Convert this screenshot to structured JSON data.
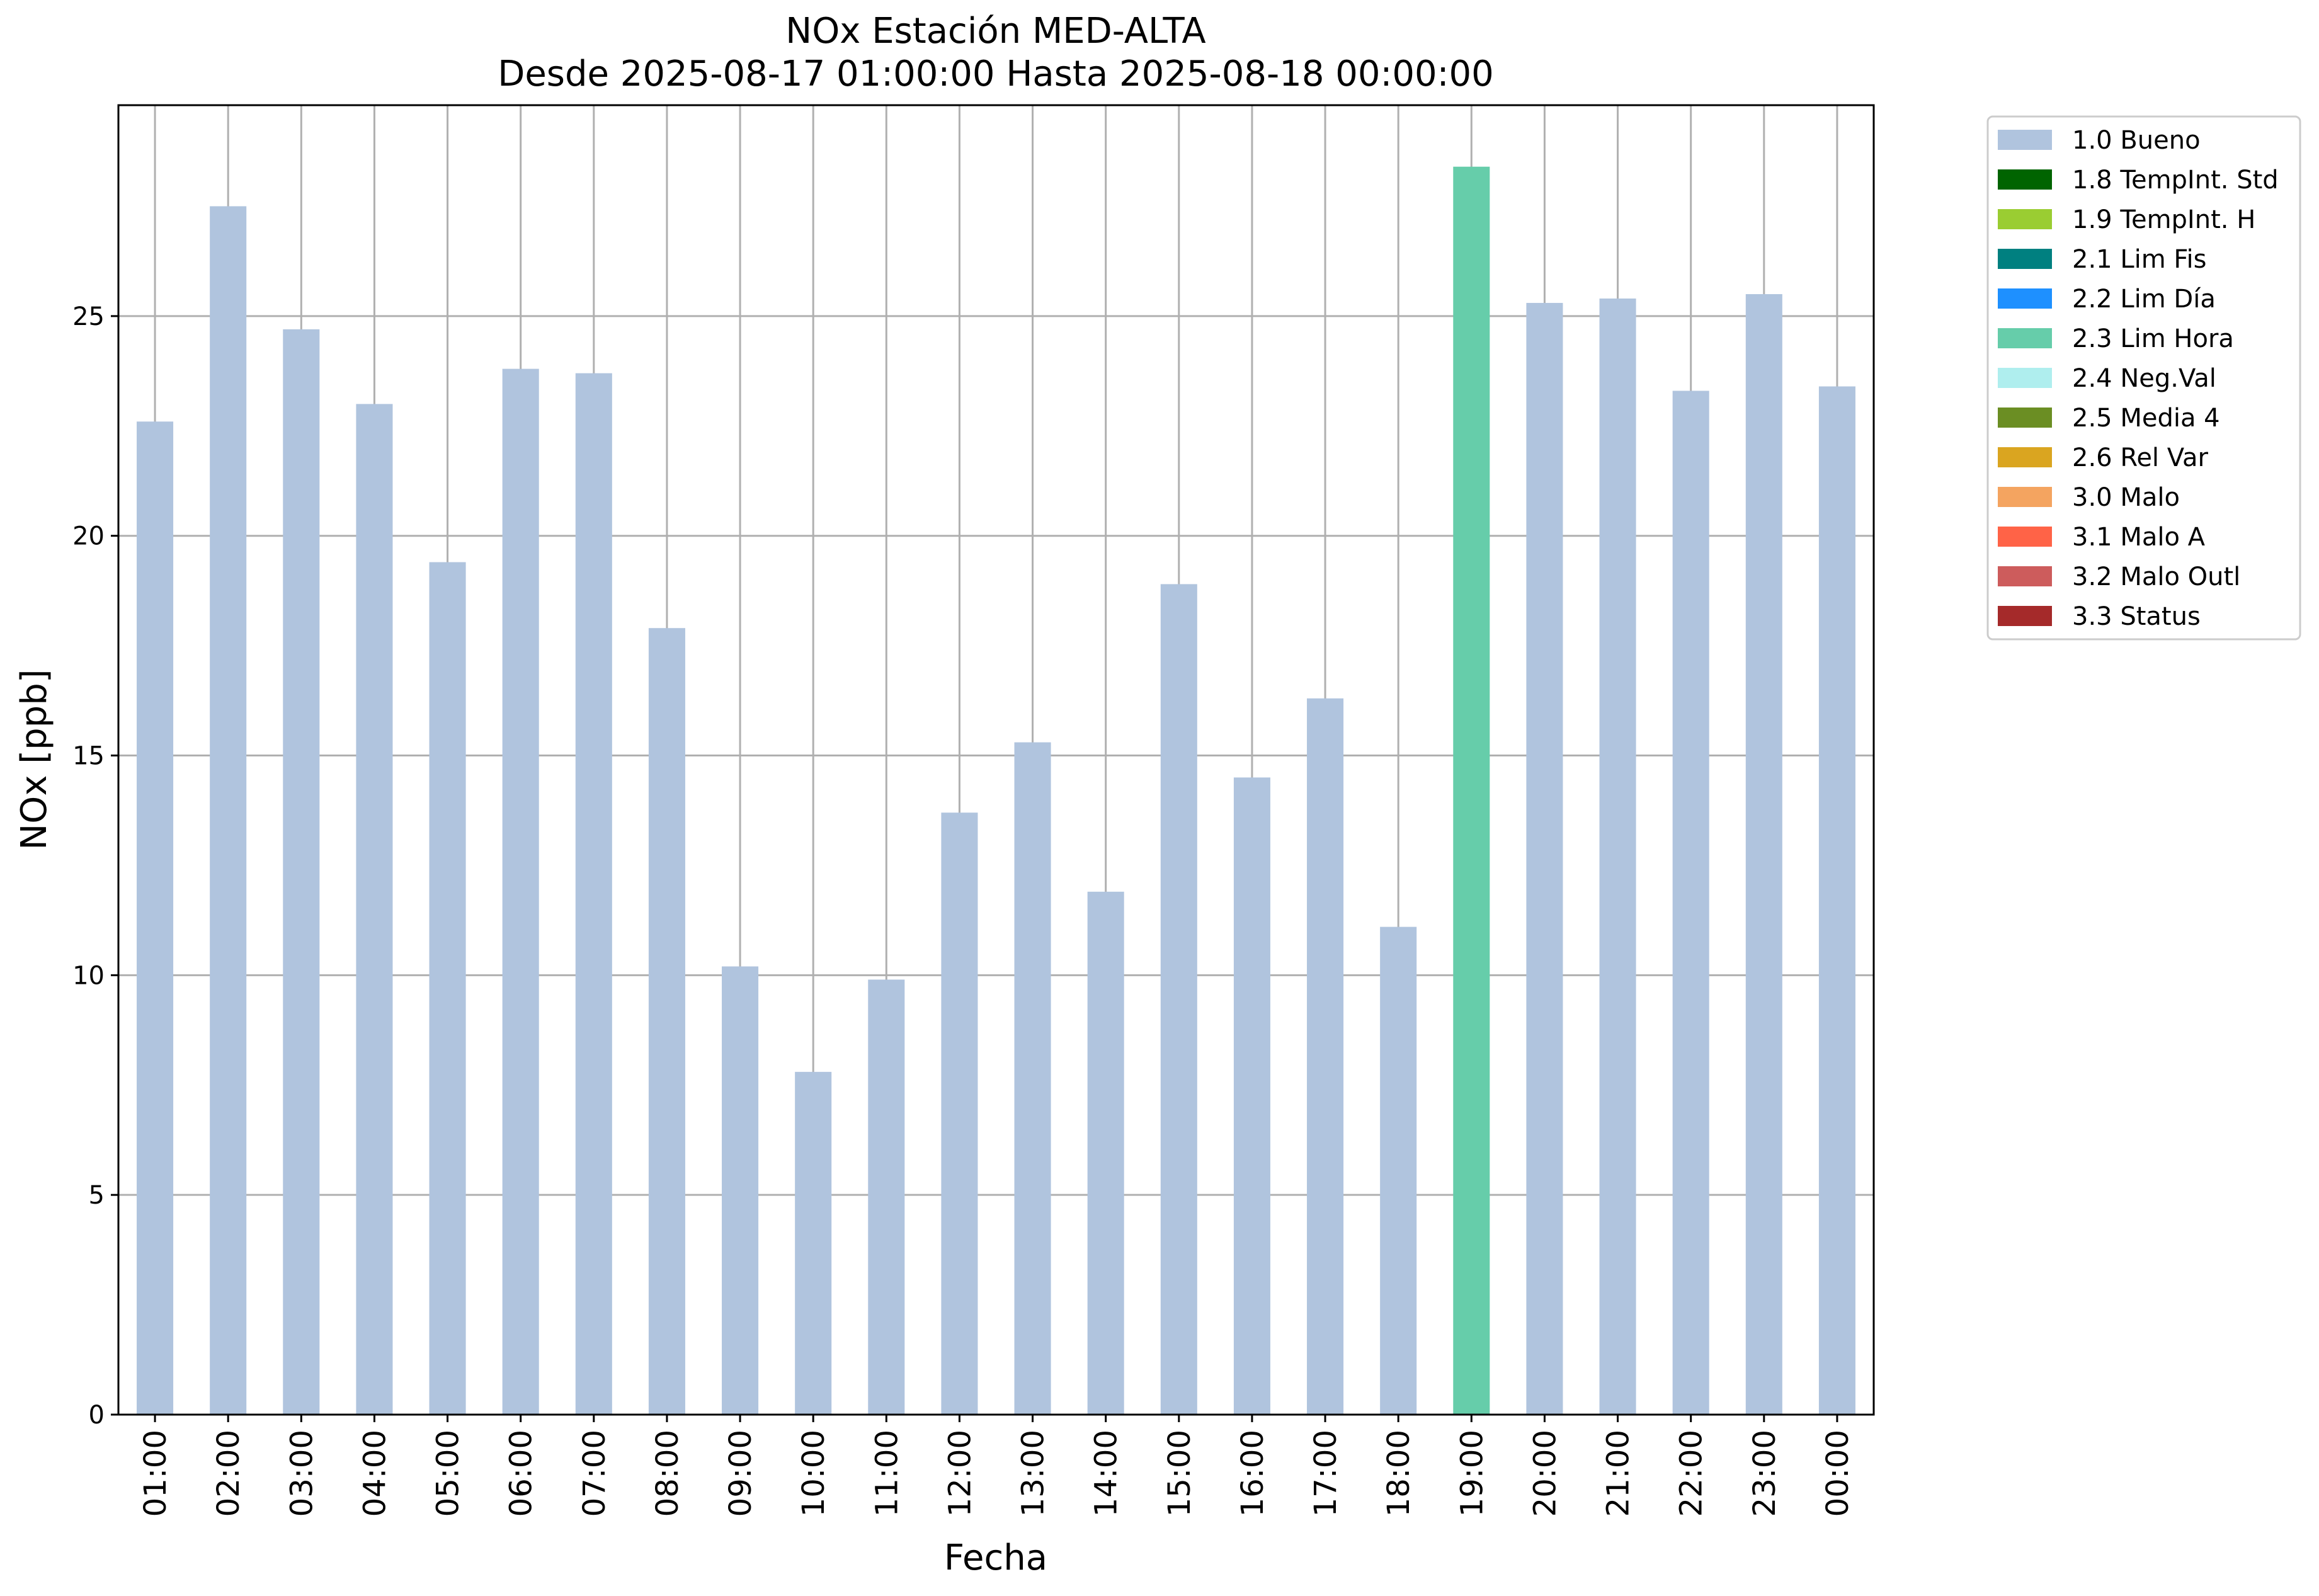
{
  "chart_data": {
    "type": "bar",
    "title": "NOx Estación MED-ALTA",
    "subtitle": "Desde 2025-08-17 01:00:00 Hasta 2025-08-18 00:00:00",
    "xlabel": "Fecha",
    "ylabel": "NOx [ppb]",
    "ylim": [
      0,
      29.8
    ],
    "yticks": [
      0,
      5,
      10,
      15,
      20,
      25
    ],
    "grid": true,
    "legend_position": "outside-top-right",
    "categories": [
      "01:00",
      "02:00",
      "03:00",
      "04:00",
      "05:00",
      "06:00",
      "07:00",
      "08:00",
      "09:00",
      "10:00",
      "11:00",
      "12:00",
      "13:00",
      "14:00",
      "15:00",
      "16:00",
      "17:00",
      "18:00",
      "19:00",
      "20:00",
      "21:00",
      "22:00",
      "23:00",
      "00:00"
    ],
    "values": [
      22.6,
      27.5,
      24.7,
      23.0,
      19.4,
      23.8,
      23.7,
      17.9,
      10.2,
      7.8,
      9.9,
      13.7,
      15.3,
      11.9,
      18.9,
      14.5,
      16.3,
      11.1,
      28.4,
      25.3,
      25.4,
      23.3,
      25.5,
      23.4
    ],
    "flags": [
      "1.0 Bueno",
      "1.0 Bueno",
      "1.0 Bueno",
      "1.0 Bueno",
      "1.0 Bueno",
      "1.0 Bueno",
      "1.0 Bueno",
      "1.0 Bueno",
      "1.0 Bueno",
      "1.0 Bueno",
      "1.0 Bueno",
      "1.0 Bueno",
      "1.0 Bueno",
      "1.0 Bueno",
      "1.0 Bueno",
      "1.0 Bueno",
      "1.0 Bueno",
      "1.0 Bueno",
      "2.3 Lim Hora",
      "1.0 Bueno",
      "1.0 Bueno",
      "1.0 Bueno",
      "1.0 Bueno",
      "1.0 Bueno"
    ],
    "legend": [
      {
        "label": "1.0 Bueno",
        "color": "#b0c4de"
      },
      {
        "label": "1.8 TempInt. Std",
        "color": "#006400"
      },
      {
        "label": "1.9 TempInt. H",
        "color": "#9acd32"
      },
      {
        "label": "2.1 Lim Fis",
        "color": "#008080"
      },
      {
        "label": "2.2 Lim Día",
        "color": "#1e90ff"
      },
      {
        "label": "2.3 Lim Hora",
        "color": "#66cdaa"
      },
      {
        "label": "2.4 Neg.Val",
        "color": "#afeeee"
      },
      {
        "label": "2.5 Media 4",
        "color": "#6b8e23"
      },
      {
        "label": "2.6 Rel Var",
        "color": "#daa520"
      },
      {
        "label": "3.0 Malo",
        "color": "#f4a460"
      },
      {
        "label": "3.1 Malo A",
        "color": "#ff6347"
      },
      {
        "label": "3.2 Malo Outl",
        "color": "#cd5c5c"
      },
      {
        "label": "3.3 Status",
        "color": "#a52a2a"
      }
    ]
  },
  "colors": {
    "grid": "#b0b0b0",
    "axis": "#000000"
  }
}
